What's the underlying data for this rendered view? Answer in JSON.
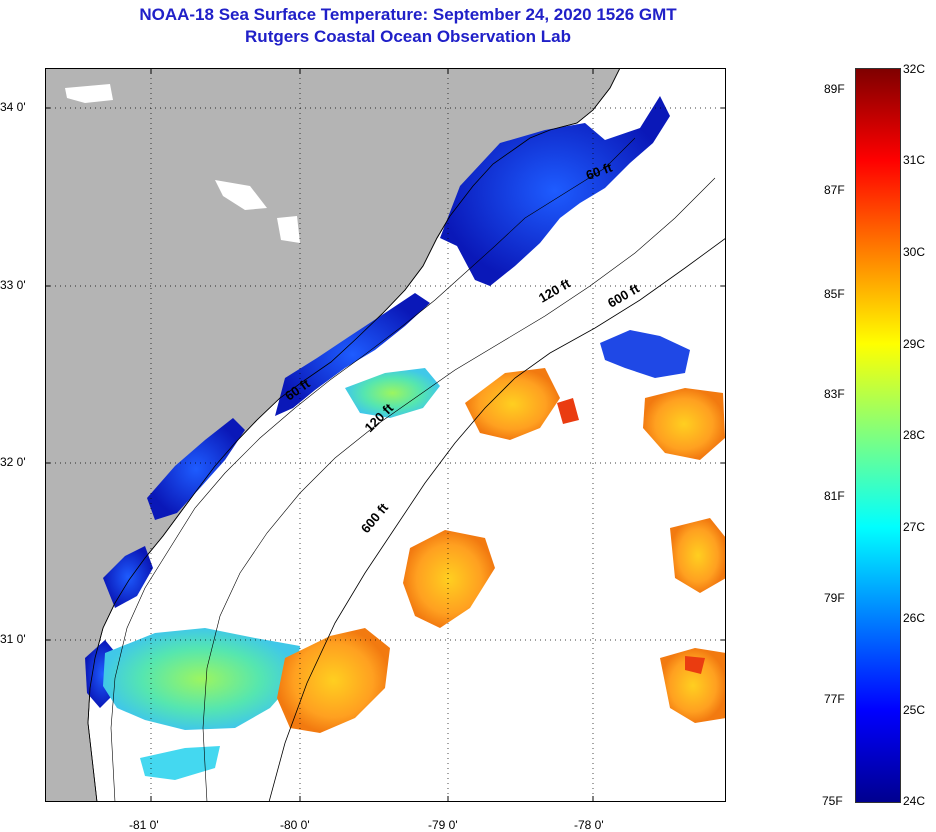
{
  "title": {
    "line1": "NOAA-18 Sea Surface Temperature:  September 24, 2020 1526 GMT",
    "line2": "Rutgers Coastal Ocean Observation Lab"
  },
  "map": {
    "lat_ticks": [
      {
        "label": "34 0'",
        "lat": 34.0
      },
      {
        "label": "33 0'",
        "lat": 33.0
      },
      {
        "label": "32 0'",
        "lat": 32.0
      },
      {
        "label": "31 0'",
        "lat": 31.0
      }
    ],
    "lon_ticks": [
      {
        "label": "-81 0'",
        "lon": -81.0
      },
      {
        "label": "-80 0'",
        "lon": -80.0
      },
      {
        "label": "-79 0'",
        "lon": -79.0
      },
      {
        "label": "-78 0'",
        "lon": -78.0
      }
    ],
    "lat_range": [
      30.05,
      34.2
    ],
    "lon_range": [
      -81.8,
      -77.2
    ],
    "isobath_labels": [
      {
        "text": "60 ft",
        "lat": 33.55,
        "lon": -78.1
      },
      {
        "text": "120 ft",
        "lat": 32.95,
        "lon": -78.15
      },
      {
        "text": "600 ft",
        "lat": 32.95,
        "lon": -77.9
      },
      {
        "text": "60 ft",
        "lat": 32.45,
        "lon": -80.05
      },
      {
        "text": "120 ft",
        "lat": 32.3,
        "lon": -79.5
      },
      {
        "text": "600 ft",
        "lat": 31.65,
        "lon": -79.5
      }
    ],
    "colors": {
      "land": "#b4b4b4",
      "no_data": "#ffffff"
    }
  },
  "colorbar": {
    "celsius": [
      "32C",
      "31C",
      "30C",
      "29C",
      "28C",
      "27C",
      "26C",
      "25C",
      "24C"
    ],
    "fahrenheit": [
      "89F",
      "87F",
      "85F",
      "83F",
      "81F",
      "79F",
      "77F",
      "75F"
    ],
    "min_c": 24,
    "max_c": 32,
    "colors": [
      "#00008f",
      "#0000ff",
      "#007fff",
      "#00ffff",
      "#7fff7f",
      "#ffff00",
      "#ff7f00",
      "#ff0000",
      "#7f0000"
    ]
  }
}
